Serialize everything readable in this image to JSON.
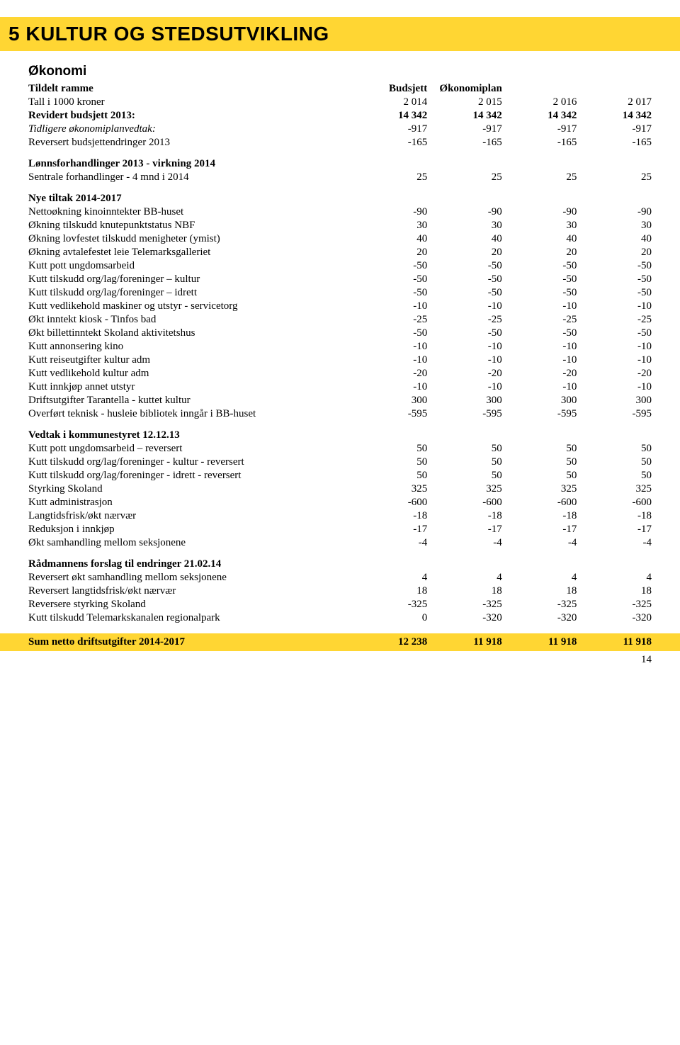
{
  "title": "5  KULTUR OG STEDSUTVIKLING",
  "section_heading": "Økonomi",
  "page_number": "14",
  "colors": {
    "highlight": "#ffd633",
    "text": "#000000",
    "background": "#ffffff"
  },
  "table": {
    "col_headers_top": {
      "label": "Tildelt ramme",
      "c1": "Budsjett",
      "c2": "Økonomiplan"
    },
    "year_row": {
      "label": "Tall i 1000 kroner",
      "c": [
        "2 014",
        "2 015",
        "2 016",
        "2 017"
      ]
    },
    "rows": [
      {
        "label": "Revidert budsjett 2013:",
        "c": [
          "14 342",
          "14 342",
          "14 342",
          "14 342"
        ],
        "bold": true
      },
      {
        "label": "Tidligere økonomiplanvedtak:",
        "c": [
          "-917",
          "-917",
          "-917",
          "-917"
        ],
        "italicLabel": true
      },
      {
        "label": "Reversert budsjettendringer 2013",
        "c": [
          "-165",
          "-165",
          "-165",
          "-165"
        ]
      }
    ],
    "section_a": {
      "heading": "Lønnsforhandlinger 2013 - virkning 2014",
      "rows": [
        {
          "label": "Sentrale forhandlinger - 4 mnd i 2014",
          "c": [
            "25",
            "25",
            "25",
            "25"
          ]
        }
      ]
    },
    "section_b": {
      "heading": "Nye tiltak 2014-2017",
      "rows": [
        {
          "label": "Nettoøkning kinoinntekter BB-huset",
          "c": [
            "-90",
            "-90",
            "-90",
            "-90"
          ]
        },
        {
          "label": "Økning tilskudd knutepunktstatus NBF",
          "c": [
            "30",
            "30",
            "30",
            "30"
          ]
        },
        {
          "label": "Økning lovfestet tilskudd menigheter (ymist)",
          "c": [
            "40",
            "40",
            "40",
            "40"
          ]
        },
        {
          "label": "Økning avtalefestet leie Telemarksgalleriet",
          "c": [
            "20",
            "20",
            "20",
            "20"
          ]
        },
        {
          "label": "Kutt pott ungdomsarbeid",
          "c": [
            "-50",
            "-50",
            "-50",
            "-50"
          ]
        },
        {
          "label": "Kutt tilskudd org/lag/foreninger – kultur",
          "c": [
            "-50",
            "-50",
            "-50",
            "-50"
          ]
        },
        {
          "label": "Kutt tilskudd org/lag/foreninger – idrett",
          "c": [
            "-50",
            "-50",
            "-50",
            "-50"
          ]
        },
        {
          "label": "Kutt vedlikehold maskiner og utstyr - servicetorg",
          "c": [
            "-10",
            "-10",
            "-10",
            "-10"
          ]
        },
        {
          "label": "Økt inntekt kiosk - Tinfos bad",
          "c": [
            "-25",
            "-25",
            "-25",
            "-25"
          ]
        },
        {
          "label": "Økt billettinntekt Skoland aktivitetshus",
          "c": [
            "-50",
            "-50",
            "-50",
            "-50"
          ]
        },
        {
          "label": "Kutt annonsering kino",
          "c": [
            "-10",
            "-10",
            "-10",
            "-10"
          ]
        },
        {
          "label": "Kutt reiseutgifter kultur adm",
          "c": [
            "-10",
            "-10",
            "-10",
            "-10"
          ]
        },
        {
          "label": "Kutt vedlikehold kultur adm",
          "c": [
            "-20",
            "-20",
            "-20",
            "-20"
          ]
        },
        {
          "label": "Kutt innkjøp annet utstyr",
          "c": [
            "-10",
            "-10",
            "-10",
            "-10"
          ]
        },
        {
          "label": "Driftsutgifter Tarantella - kuttet kultur",
          "c": [
            "300",
            "300",
            "300",
            "300"
          ]
        },
        {
          "label": "Overført teknisk - husleie bibliotek inngår i BB-huset",
          "c": [
            "-595",
            "-595",
            "-595",
            "-595"
          ]
        }
      ]
    },
    "section_c": {
      "heading": "Vedtak i kommunestyret 12.12.13",
      "rows": [
        {
          "label": "Kutt pott ungdomsarbeid – reversert",
          "c": [
            "50",
            "50",
            "50",
            "50"
          ]
        },
        {
          "label": "Kutt tilskudd org/lag/foreninger - kultur - reversert",
          "c": [
            "50",
            "50",
            "50",
            "50"
          ]
        },
        {
          "label": "Kutt tilskudd org/lag/foreninger - idrett - reversert",
          "c": [
            "50",
            "50",
            "50",
            "50"
          ]
        },
        {
          "label": "Styrking Skoland",
          "c": [
            "325",
            "325",
            "325",
            "325"
          ]
        },
        {
          "label": "Kutt administrasjon",
          "c": [
            "-600",
            "-600",
            "-600",
            "-600"
          ]
        },
        {
          "label": "Langtidsfrisk/økt nærvær",
          "c": [
            "-18",
            "-18",
            "-18",
            "-18"
          ]
        },
        {
          "label": "Reduksjon i innkjøp",
          "c": [
            "-17",
            "-17",
            "-17",
            "-17"
          ]
        },
        {
          "label": "Økt samhandling mellom seksjonene",
          "c": [
            "-4",
            "-4",
            "-4",
            "-4"
          ]
        }
      ]
    },
    "section_d": {
      "heading": "Rådmannens forslag til endringer 21.02.14",
      "rows": [
        {
          "label": "Reversert økt samhandling mellom seksjonene",
          "c": [
            "4",
            "4",
            "4",
            "4"
          ]
        },
        {
          "label": "Reversert langtidsfrisk/økt nærvær",
          "c": [
            "18",
            "18",
            "18",
            "18"
          ]
        },
        {
          "label": "Reversere styrking Skoland",
          "c": [
            "-325",
            "-325",
            "-325",
            "-325"
          ]
        },
        {
          "label": "Kutt tilskudd Telemarkskanalen regionalpark",
          "c": [
            "0",
            "-320",
            "-320",
            "-320"
          ]
        }
      ]
    },
    "footer": {
      "label": "Sum netto driftsutgifter 2014-2017",
      "c": [
        "12 238",
        "11 918",
        "11 918",
        "11 918"
      ]
    }
  }
}
